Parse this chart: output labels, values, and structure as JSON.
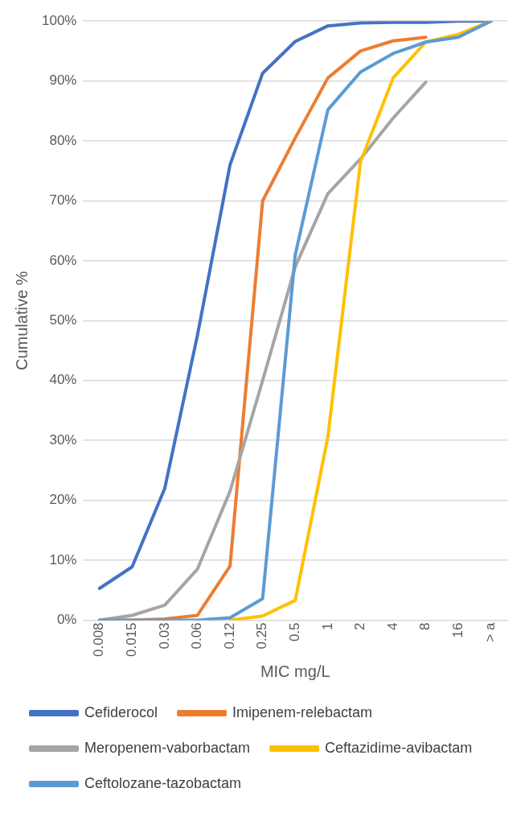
{
  "chart_data": {
    "type": "line",
    "xlabel": "MIC mg/L",
    "ylabel": "Cumulative %",
    "categories": [
      "0.008",
      "0.015",
      "0.03",
      "0.06",
      "0.12",
      "0.25",
      "0.5",
      "1",
      "2",
      "4",
      "8",
      "16",
      "> a"
    ],
    "series": [
      {
        "name": "Cefiderocol",
        "color": "#4472c4",
        "values": [
          5.3,
          8.9,
          22,
          47.5,
          76,
          91.3,
          96.6,
          99.2,
          99.7,
          99.8,
          99.8,
          100,
          100
        ]
      },
      {
        "name": "Imipenem-relebactam",
        "color": "#ed7d31",
        "values": [
          0,
          0,
          0.2,
          0.8,
          9,
          70,
          80.5,
          90.5,
          95,
          96.7,
          97.3,
          null,
          null
        ]
      },
      {
        "name": "Meropenem-vaborbactam",
        "color": "#a5a5a5",
        "values": [
          0,
          0.8,
          2.5,
          8.5,
          21.5,
          40,
          59,
          71.2,
          77,
          83.8,
          89.8,
          null,
          null
        ]
      },
      {
        "name": "Ceftazidime-avibactam",
        "color": "#ffc000",
        "values": [
          null,
          null,
          null,
          null,
          0,
          0.7,
          3.3,
          30.6,
          76.5,
          90.5,
          96.5,
          97.8,
          100
        ]
      },
      {
        "name": "Ceftolozane-tazobactam",
        "color": "#5b9bd5",
        "values": [
          0,
          0,
          0,
          0,
          0.4,
          3.6,
          61,
          85.2,
          91.5,
          94.6,
          96.5,
          97.3,
          100
        ]
      }
    ],
    "ylim": [
      0,
      100
    ],
    "yticks": [
      {
        "value": 0,
        "label": "0%"
      },
      {
        "value": 10,
        "label": "10%"
      },
      {
        "value": 20,
        "label": "20%"
      },
      {
        "value": 30,
        "label": "30%"
      },
      {
        "value": 40,
        "label": "40%"
      },
      {
        "value": 50,
        "label": "50%"
      },
      {
        "value": 60,
        "label": "60%"
      },
      {
        "value": 70,
        "label": "70%"
      },
      {
        "value": 80,
        "label": "80%"
      },
      {
        "value": 90,
        "label": "90%"
      },
      {
        "value": 100,
        "label": "100%"
      }
    ],
    "grid": "y",
    "legend": "bottom",
    "marker": "none",
    "line_style": "solid"
  }
}
